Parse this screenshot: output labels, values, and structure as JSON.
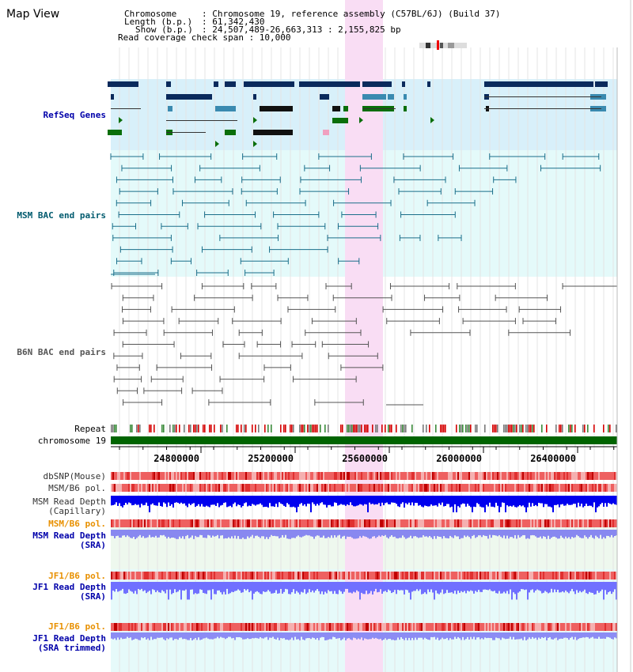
{
  "title": "Map View",
  "info": {
    "chromosome_label": "Chromosome",
    "chromosome_value": ": Chromosome 19, reference assembly (C57BL/6J) (Build 37)",
    "length_label": "Length (b.p.)",
    "length_value": ": 61,342,430",
    "show_label": "Show (b.p.)",
    "show_value": ": 24,507,489-26,663,313 : 2,155,825 bp",
    "coverage": "Read coverage check span : 10,000"
  },
  "tracks": {
    "refseq": "RefSeq Genes",
    "msm_bac": "MSM BAC end pairs",
    "b6n_bac": "B6N BAC end pairs",
    "repeat": "Repeat",
    "chromosome": "chromosome 19",
    "dbsnp": "dbSNP(Mouse)",
    "msm_pol1": "MSM/B6 pol.",
    "msm_depth_cap": "MSM Read Depth",
    "msm_depth_cap_sub": "(Capillary)",
    "msm_pol2": "MSM/B6 pol.",
    "msm_depth_sra": "MSM Read Depth",
    "msm_depth_sra_sub": "(SRA)",
    "jf1_pol1": "JF1/B6 pol.",
    "jf1_depth_sra": "JF1 Read Depth",
    "jf1_depth_sra_sub": "(SRA)",
    "jf1_pol2": "JF1/B6 pol.",
    "jf1_depth_trim": "JF1 Read Depth",
    "jf1_depth_trim_sub": "(SRA trimmed)"
  },
  "axis": {
    "ticks": [
      "24800000",
      "25200000",
      "25600000",
      "26000000",
      "26400000"
    ]
  },
  "colors": {
    "highlight": "#f9ddf4",
    "gene_dark": "#0a2a5c",
    "gene_teal": "#3a8ab0",
    "gene_green": "#0a6e0a",
    "bac_msm": "#1a6e8a",
    "bac_b6n": "#555555",
    "label_blue": "#0000aa",
    "label_teal": "#005a6e",
    "label_orange": "#e89000",
    "chrom_green": "#006400",
    "depth_blue": "#0000ee",
    "depth_light": "#7070ff"
  }
}
